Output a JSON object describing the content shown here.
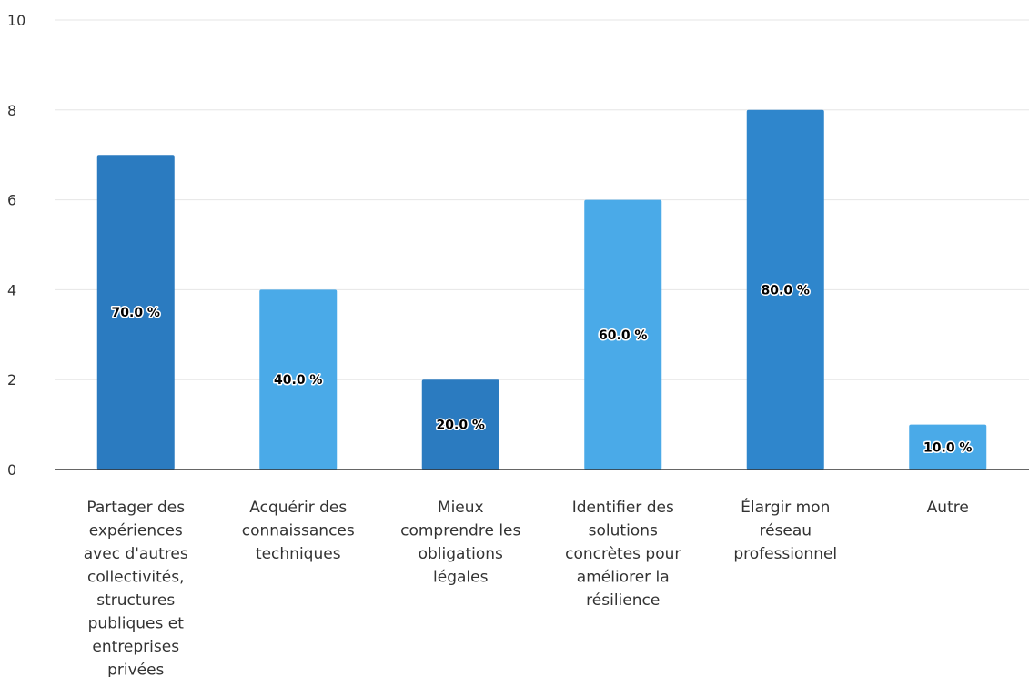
{
  "chart_data": {
    "type": "bar",
    "categories": [
      "Partager des expériences avec d'autres collectivités, structures publiques et entreprises privées",
      "Acquérir des connaissances techniques",
      "Mieux comprendre les obligations légales",
      "Identifier des solutions concrètes pour améliorer la résilience",
      "Élargir mon réseau professionnel",
      "Autre"
    ],
    "category_lines": [
      [
        "Partager des",
        "expériences",
        "avec d'autres",
        "collectivités,",
        "structures",
        "publiques et",
        "entreprises",
        "privées"
      ],
      [
        "Acquérir des",
        "connaissances",
        "techniques"
      ],
      [
        "Mieux",
        "comprendre les",
        "obligations",
        "légales"
      ],
      [
        "Identifier des",
        "solutions",
        "concrètes pour",
        "améliorer la",
        "résilience"
      ],
      [
        "Élargir mon",
        "réseau",
        "professionnel"
      ],
      [
        "Autre"
      ]
    ],
    "values": [
      7,
      4,
      2,
      6,
      8,
      1
    ],
    "data_labels": [
      "70.0 %",
      "40.0 %",
      "20.0 %",
      "60.0 %",
      "80.0 %",
      "10.0 %"
    ],
    "bar_colors": [
      "#2b7bc0",
      "#4aaae8",
      "#2b7bc0",
      "#4aaae8",
      "#2f86cc",
      "#4aaae8"
    ],
    "yticks": [
      0,
      2,
      4,
      6,
      8,
      10
    ],
    "ylim": [
      0,
      10
    ],
    "grid": true,
    "legend": "none",
    "title": "",
    "xlabel": "",
    "ylabel": ""
  }
}
